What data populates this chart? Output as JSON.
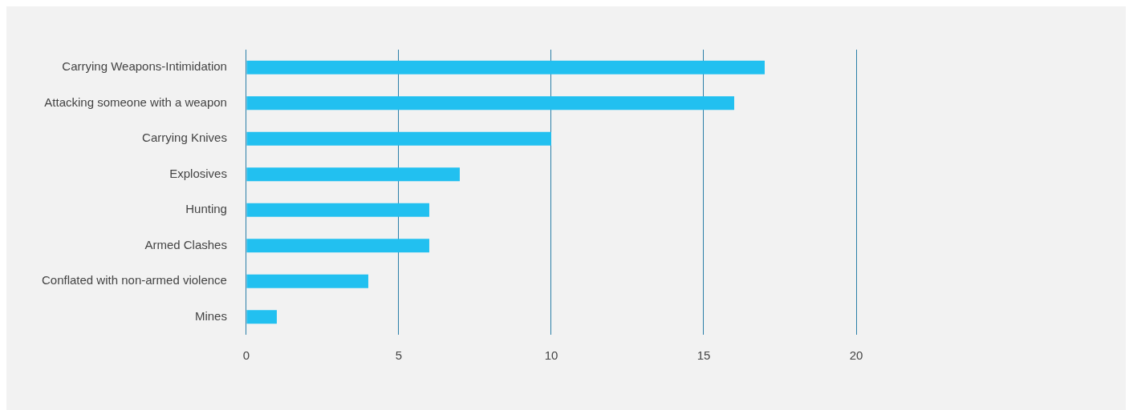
{
  "chart_data": {
    "type": "bar",
    "orientation": "horizontal",
    "categories": [
      "Carrying Weapons-Intimidation",
      "Attacking someone with a weapon",
      "Carrying Knives",
      "Explosives",
      "Hunting",
      "Armed Clashes",
      "Conflated with non-armed violence",
      "Mines"
    ],
    "values": [
      17,
      16,
      10,
      7,
      6,
      6,
      4,
      1
    ],
    "color": "#22c0f0",
    "xlim": [
      0,
      20
    ],
    "xticks": [
      0,
      5,
      10,
      15,
      20
    ],
    "grid": "x",
    "legend": false
  }
}
